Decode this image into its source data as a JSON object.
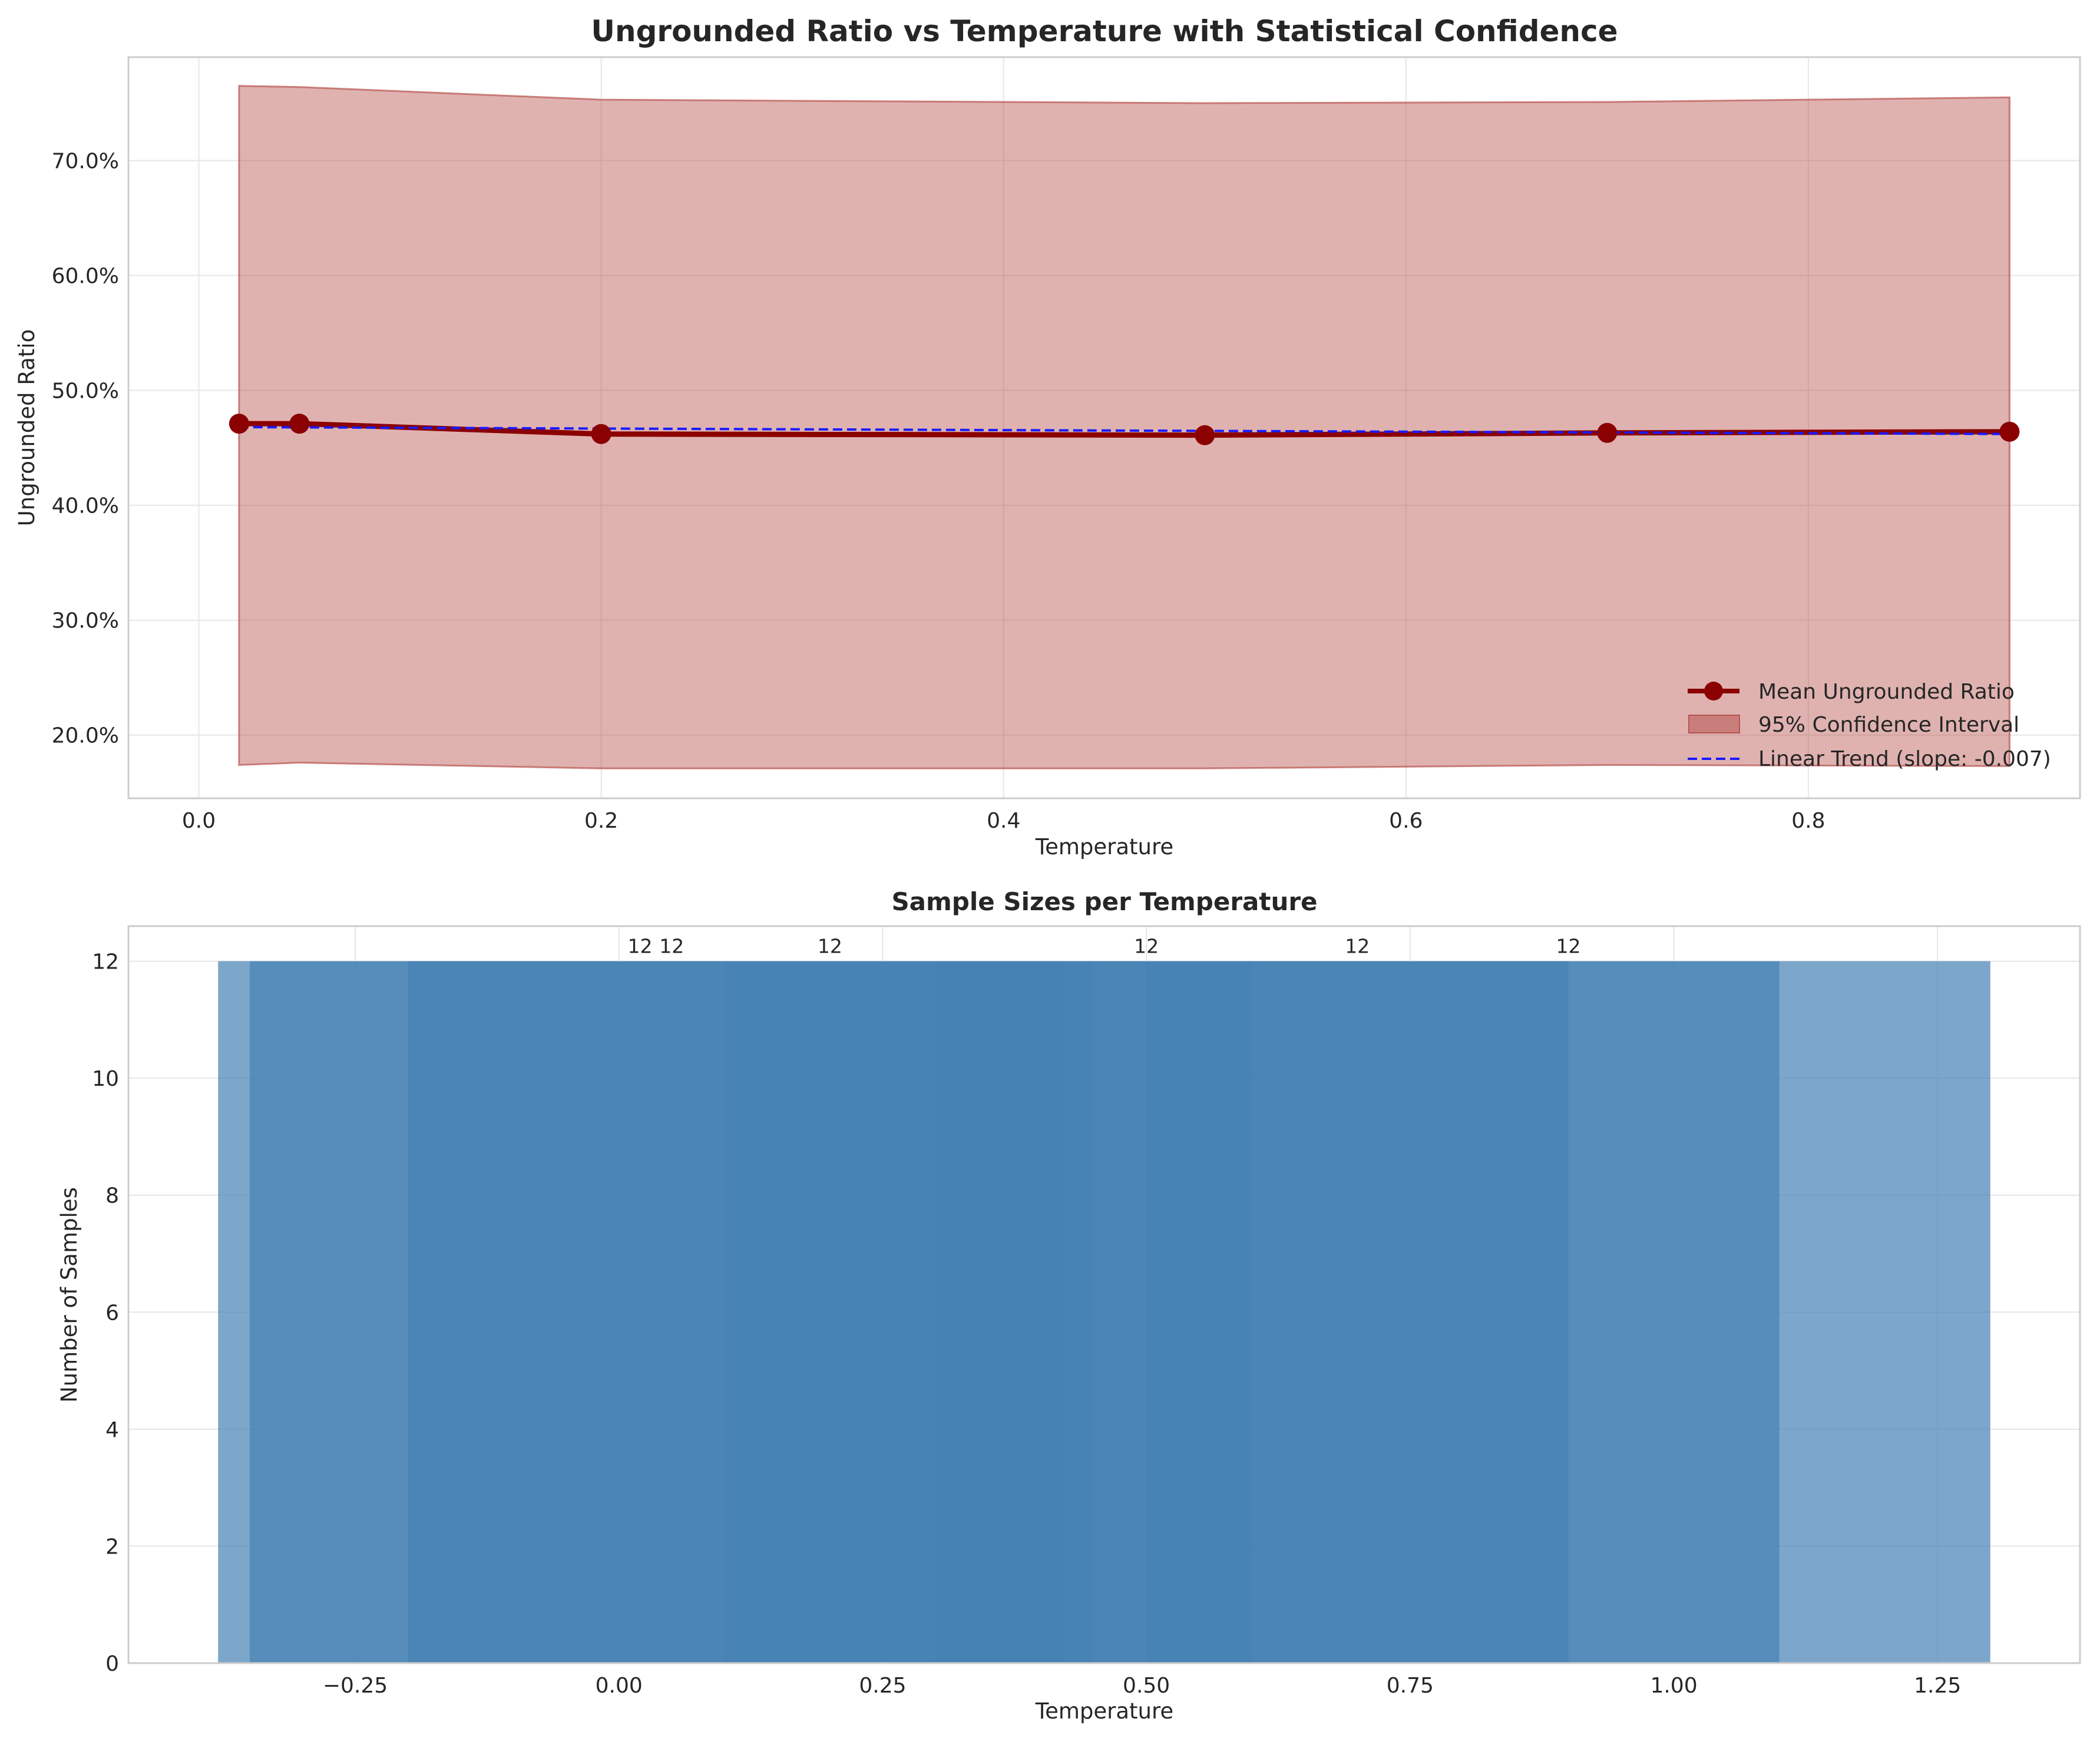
{
  "chart_data": [
    {
      "type": "line",
      "title": "Ungrounded Ratio vs Temperature with Statistical Confidence",
      "xlabel": "Temperature",
      "ylabel": "Ungrounded Ratio",
      "xlim": [
        -0.035,
        0.935
      ],
      "ylim": [
        0.145,
        0.79
      ],
      "x_ticks": [
        0.0,
        0.2,
        0.4,
        0.6,
        0.8
      ],
      "x_tick_labels": [
        "0.0",
        "0.2",
        "0.4",
        "0.6",
        "0.8"
      ],
      "y_ticks": [
        0.2,
        0.3,
        0.4,
        0.5,
        0.6,
        0.7
      ],
      "y_tick_labels": [
        "20.0%",
        "30.0%",
        "40.0%",
        "50.0%",
        "60.0%",
        "70.0%"
      ],
      "grid": true,
      "legend_position": "lower right",
      "series": [
        {
          "name": "Mean Ungrounded Ratio",
          "color": "#8b0000",
          "x": [
            0.02,
            0.05,
            0.2,
            0.5,
            0.7,
            0.9
          ],
          "y": [
            0.471,
            0.471,
            0.462,
            0.461,
            0.463,
            0.464
          ]
        },
        {
          "name": "95% Confidence Interval",
          "color": "#b85450",
          "x": [
            0.02,
            0.05,
            0.2,
            0.5,
            0.7,
            0.9
          ],
          "lower": [
            0.174,
            0.176,
            0.171,
            0.171,
            0.174,
            0.173
          ],
          "upper": [
            0.765,
            0.764,
            0.753,
            0.75,
            0.751,
            0.755
          ]
        },
        {
          "name": "Linear Trend (slope: -0.007)",
          "color": "#1a1aff",
          "x": [
            0.02,
            0.9
          ],
          "y": [
            0.468,
            0.462
          ]
        }
      ]
    },
    {
      "type": "bar",
      "title": "Sample Sizes per Temperature",
      "xlabel": "Temperature",
      "ylabel": "Number of Samples",
      "xlim": [
        -0.465,
        1.385
      ],
      "ylim": [
        0,
        12.6
      ],
      "x_ticks": [
        -0.25,
        0.0,
        0.25,
        0.5,
        0.75,
        1.0,
        1.25
      ],
      "x_tick_labels": [
        "−0.25",
        "0.00",
        "0.25",
        "0.50",
        "0.75",
        "1.00",
        "1.25"
      ],
      "y_ticks": [
        0,
        2,
        4,
        6,
        8,
        10,
        12
      ],
      "y_tick_labels": [
        "0",
        "2",
        "4",
        "6",
        "8",
        "10",
        "12"
      ],
      "grid": true,
      "bar_color": "#4682b4",
      "bar_width": 0.8,
      "x": [
        0.02,
        0.05,
        0.2,
        0.5,
        0.7,
        0.9
      ],
      "values": [
        12,
        12,
        12,
        12,
        12,
        12
      ],
      "data_labels": [
        "12",
        "12",
        "12",
        "12",
        "12",
        "12"
      ]
    }
  ]
}
